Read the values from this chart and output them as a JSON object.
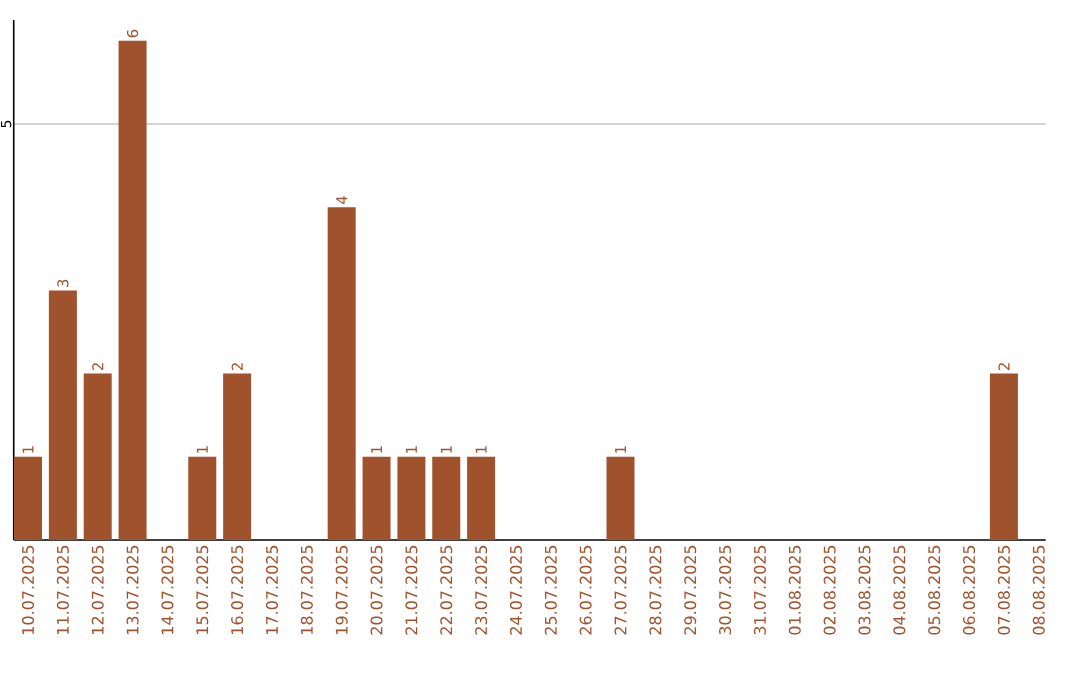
{
  "chart_data": {
    "type": "bar",
    "categories": [
      "10.07.2025",
      "11.07.2025",
      "12.07.2025",
      "13.07.2025",
      "14.07.2025",
      "15.07.2025",
      "16.07.2025",
      "17.07.2025",
      "18.07.2025",
      "19.07.2025",
      "20.07.2025",
      "21.07.2025",
      "22.07.2025",
      "23.07.2025",
      "24.07.2025",
      "25.07.2025",
      "26.07.2025",
      "27.07.2025",
      "28.07.2025",
      "29.07.2025",
      "30.07.2025",
      "31.07.2025",
      "01.08.2025",
      "02.08.2025",
      "03.08.2025",
      "04.08.2025",
      "05.08.2025",
      "06.08.2025",
      "07.08.2025",
      "08.08.2025"
    ],
    "values": [
      1,
      3,
      2,
      6,
      0,
      1,
      2,
      0,
      0,
      4,
      1,
      1,
      1,
      1,
      0,
      0,
      0,
      1,
      0,
      0,
      0,
      0,
      0,
      0,
      0,
      0,
      0,
      0,
      2,
      0
    ],
    "value_labels": [
      "1",
      "3",
      "2",
      "6",
      null,
      "1",
      "2",
      null,
      null,
      "4",
      "1",
      "1",
      "1",
      "1",
      null,
      null,
      null,
      "1",
      null,
      null,
      null,
      null,
      null,
      null,
      null,
      null,
      null,
      null,
      "2",
      null
    ],
    "color": "#a0522d",
    "ylim": [
      0,
      6.25
    ],
    "yticks": [
      5
    ],
    "grid": "y"
  }
}
